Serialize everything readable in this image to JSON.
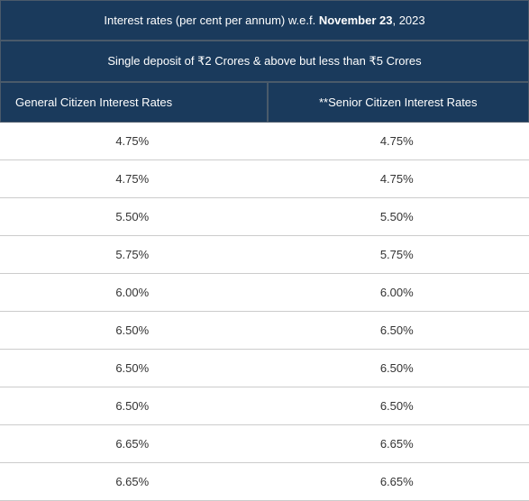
{
  "header": {
    "title_prefix": "Interest rates (per cent per annum) w.e.f. ",
    "title_bold": "November 23",
    "title_suffix": ", 2023"
  },
  "subheader": {
    "text": "Single deposit of ₹2 Crores & above but less than ₹5 Crores"
  },
  "columns": {
    "general": "General Citizen Interest Rates",
    "senior": "**Senior Citizen Interest Rates"
  },
  "rows": [
    {
      "general": "4.75%",
      "senior": "4.75%"
    },
    {
      "general": "4.75%",
      "senior": "4.75%"
    },
    {
      "general": "5.50%",
      "senior": "5.50%"
    },
    {
      "general": "5.75%",
      "senior": "5.75%"
    },
    {
      "general": "6.00%",
      "senior": "6.00%"
    },
    {
      "general": "6.50%",
      "senior": "6.50%"
    },
    {
      "general": "6.50%",
      "senior": "6.50%"
    },
    {
      "general": "6.50%",
      "senior": "6.50%"
    },
    {
      "general": "6.65%",
      "senior": "6.65%"
    },
    {
      "general": "6.65%",
      "senior": "6.65%"
    }
  ],
  "colors": {
    "header_bg": "#1a3a5c",
    "header_text": "#ffffff",
    "border": "#4a5a6a",
    "row_border": "#cccccc",
    "cell_text": "#333333",
    "cell_bg": "#ffffff"
  }
}
